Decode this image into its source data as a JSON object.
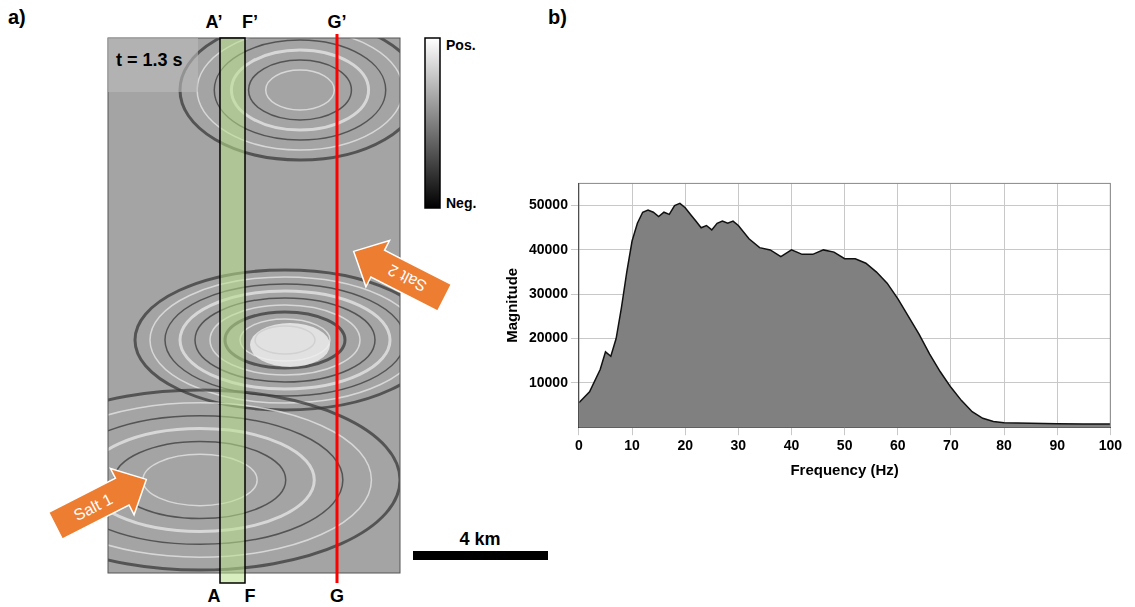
{
  "figure": {
    "panel_label": "a)",
    "time_label": "t = 1.3 s",
    "sections": [
      {
        "top": "A’",
        "bottom": "A"
      },
      {
        "top": "F’",
        "bottom": "F"
      },
      {
        "top": "G’",
        "bottom": "G"
      }
    ],
    "colorbar": {
      "max_label": "Pos.",
      "min_label": "Neg."
    },
    "arrows": [
      "Salt 1",
      "Salt 2"
    ],
    "scale_bar": "4 km"
  },
  "chart_data": {
    "type": "area",
    "panel_label": "b)",
    "x_label": "Frequency (Hz)",
    "y_label": "Magnitude",
    "x": [
      0,
      2,
      4,
      5,
      6,
      7,
      8,
      9,
      10,
      11,
      12,
      13,
      14,
      15,
      16,
      17,
      18,
      19,
      20,
      21,
      22,
      23,
      24,
      25,
      26,
      27,
      28,
      29,
      30,
      32,
      34,
      36,
      38,
      40,
      42,
      44,
      46,
      48,
      50,
      52,
      54,
      56,
      58,
      60,
      62,
      64,
      66,
      68,
      70,
      72,
      74,
      76,
      78,
      80,
      85,
      90,
      95,
      100
    ],
    "values": [
      5500,
      8000,
      13000,
      17000,
      16000,
      20000,
      27000,
      35000,
      42000,
      46000,
      48500,
      49000,
      48500,
      47500,
      48500,
      48000,
      50000,
      50500,
      49500,
      48000,
      46500,
      45000,
      45500,
      44500,
      46000,
      46500,
      46000,
      46500,
      45500,
      42500,
      40500,
      40000,
      38500,
      40000,
      39000,
      39000,
      40000,
      39500,
      38000,
      38000,
      37000,
      35000,
      32500,
      29000,
      25000,
      21000,
      16500,
      12500,
      9000,
      6000,
      3500,
      2000,
      1300,
      1000,
      900,
      800,
      700,
      700
    ],
    "color": "#808080",
    "xlim": [
      0,
      100
    ],
    "xticks": [
      0,
      10,
      20,
      30,
      40,
      50,
      60,
      70,
      80,
      90,
      100
    ],
    "ylim": [
      0,
      55000
    ],
    "yticks": [
      10000,
      20000,
      30000,
      40000,
      50000
    ],
    "grid": true
  }
}
